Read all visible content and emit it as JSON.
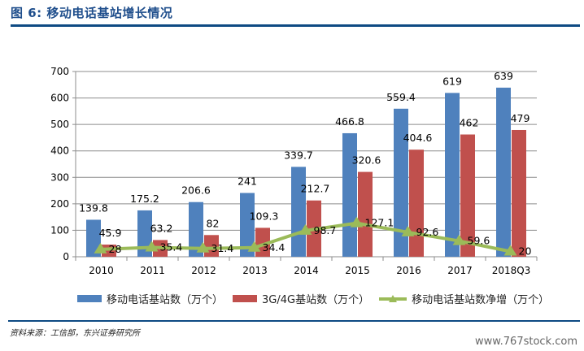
{
  "header": {
    "title": "图 6: 移动电话基站增长情况"
  },
  "footer": {
    "source": "资料来源：工信部，东兴证券研究所",
    "watermark": "www.767stock.com"
  },
  "colors": {
    "series1": "#4f81bd",
    "series2": "#c0504d",
    "series3": "#9bbb59",
    "title": "#1f4e8c",
    "rule": "#0e4a83"
  },
  "chart_data": {
    "type": "bar",
    "title": "移动电话基站增长情况",
    "categories": [
      "2010",
      "2011",
      "2012",
      "2013",
      "2014",
      "2015",
      "2016",
      "2017",
      "2018Q3"
    ],
    "ylim": [
      0,
      700
    ],
    "yticks": [
      "0",
      "100",
      "200",
      "300",
      "400",
      "500",
      "600",
      "700"
    ],
    "ytick_values": [
      0,
      100,
      200,
      300,
      400,
      500,
      600,
      700
    ],
    "grid": true,
    "legend_position": "bottom",
    "series": [
      {
        "name": "移动电话基站数（万个）",
        "type": "bar",
        "values": [
          139.8,
          175.2,
          206.6,
          241,
          339.7,
          466.8,
          559.4,
          619,
          639
        ],
        "labels": [
          "139.8",
          "175.2",
          "206.6",
          "241",
          "339.7",
          "466.8",
          "559.4",
          "619",
          "639"
        ]
      },
      {
        "name": "3G/4G基站数（万个）",
        "type": "bar",
        "values": [
          45.9,
          63.2,
          82,
          109.3,
          212.7,
          320.6,
          404.6,
          462,
          479
        ],
        "labels": [
          "45.9",
          "63.2",
          "82",
          "109.3",
          "212.7",
          "320.6",
          "404.6",
          "462",
          "479"
        ]
      },
      {
        "name": "移动电话基站数净增（万个）",
        "type": "line",
        "values": [
          28,
          35.4,
          31.4,
          34.4,
          98.7,
          127.1,
          92.6,
          59.6,
          20
        ],
        "labels": [
          "28",
          "35.4",
          "31.4",
          "34.4",
          "98.7",
          "127.1",
          "92.6",
          "59.6",
          "20"
        ]
      }
    ]
  }
}
